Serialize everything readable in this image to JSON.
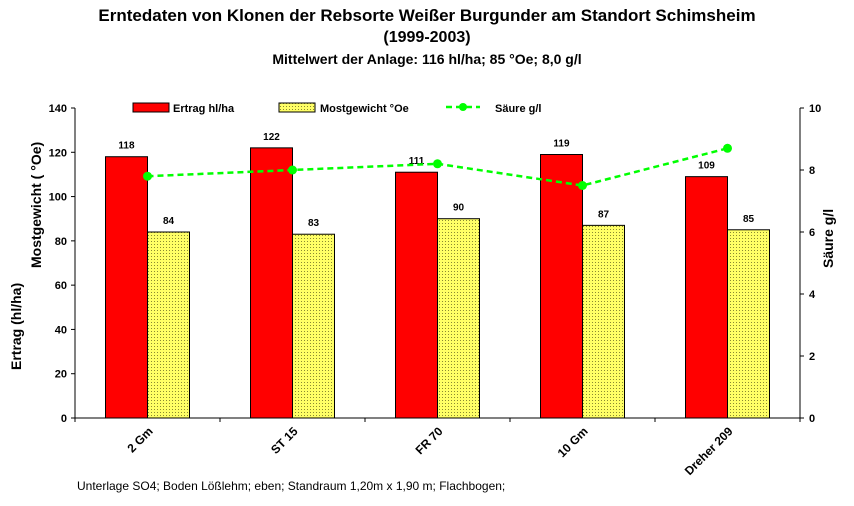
{
  "chart_data": {
    "type": "bar",
    "title": "Erntedaten von Klonen der Rebsorte Weißer Burgunder am Standort Schimsheim",
    "subtitle": "(1999-2003)",
    "subtitle2": "Mittelwert der Anlage: 116 hl/ha; 85 °Oe; 8,0 g/l",
    "categories": [
      "2 Gm",
      "ST 15",
      "FR 70",
      "10 Gm",
      "Dreher 209"
    ],
    "series": [
      {
        "name": "Ertrag hl/ha",
        "type": "bar",
        "axis": "left",
        "color": "#ff0000",
        "values": [
          118,
          122,
          111,
          119,
          109
        ]
      },
      {
        "name": "Mostgewicht °Oe",
        "type": "bar",
        "axis": "left",
        "color": "#ffff66",
        "values": [
          84,
          83,
          90,
          87,
          85
        ]
      },
      {
        "name": "Säure g/l",
        "type": "line",
        "axis": "right",
        "color": "#00ff00",
        "values": [
          7.8,
          8.0,
          8.2,
          7.5,
          8.7
        ]
      }
    ],
    "ylabel_left_1": "Ertrag (hl/ha)",
    "ylabel_left_2": "Mostgewicht ( °Oe)",
    "ylabel_right": "Säure g/l",
    "ylim_left": [
      0,
      140
    ],
    "yticks_left": [
      0,
      20,
      40,
      60,
      80,
      100,
      120,
      140
    ],
    "ylim_right": [
      0,
      10
    ],
    "yticks_right": [
      0,
      2,
      4,
      6,
      8,
      10
    ],
    "grid": false,
    "legend_position": "top",
    "footnote": "Unterlage SO4;  Boden Lößlehm; eben; Standraum 1,20m x 1,90 m; Flachbogen;"
  }
}
